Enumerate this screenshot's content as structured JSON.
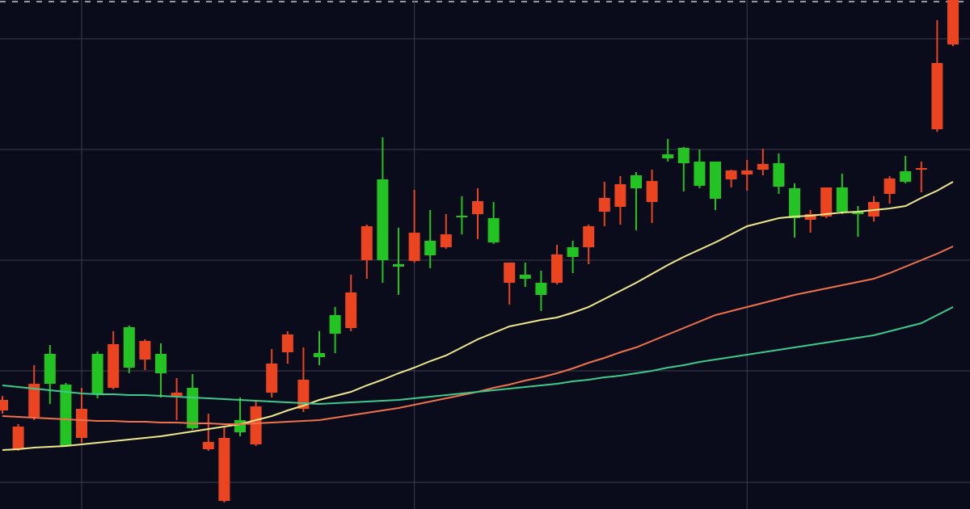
{
  "chart_data": {
    "type": "candlestick",
    "open": [
      135,
      102,
      155,
      155,
      78,
      124,
      142,
      204,
      175,
      208,
      168,
      144,
      100,
      83,
      88,
      95,
      127,
      180,
      216,
      160,
      188,
      217,
      268,
      350,
      308,
      300,
      342,
      314,
      340,
      361,
      381,
      330,
      305,
      285,
      265,
      315,
      312,
      350,
      385,
      402,
      397,
      406,
      434,
      428,
      400,
      384,
      419,
      419,
      427,
      399,
      360,
      365,
      398,
      368,
      365,
      380,
      409,
      405,
      422,
      552,
      630
    ],
    "high": [
      140,
      105,
      178,
      203,
      156,
      150,
      195,
      220,
      227,
      210,
      205,
      162,
      167,
      118,
      102,
      138,
      133,
      198,
      220,
      200,
      220,
      250,
      290,
      352,
      460,
      348,
      395,
      370,
      365,
      387,
      397,
      380,
      305,
      305,
      295,
      327,
      332,
      352,
      405,
      412,
      417,
      420,
      458,
      448,
      445,
      430,
      420,
      432,
      446,
      440,
      403,
      370,
      398,
      415,
      375,
      387,
      412,
      437,
      430,
      605,
      630
    ],
    "low": [
      118,
      72,
      110,
      130,
      77,
      82,
      137,
      148,
      168,
      172,
      138,
      110,
      98,
      72,
      8,
      90,
      78,
      138,
      180,
      120,
      178,
      193,
      220,
      285,
      280,
      265,
      305,
      298,
      322,
      340,
      334,
      328,
      253,
      275,
      245,
      278,
      292,
      303,
      350,
      352,
      345,
      354,
      430,
      393,
      397,
      370,
      398,
      394,
      413,
      390,
      336,
      342,
      360,
      365,
      337,
      356,
      378,
      403,
      392,
      467,
      573
    ],
    "close": [
      122,
      74,
      114,
      192,
      154,
      88,
      192,
      150,
      225,
      185,
      192,
      140,
      150,
      74,
      10,
      110,
      80,
      144,
      194,
      124,
      193,
      240,
      224,
      308,
      408,
      303,
      307,
      332,
      324,
      363,
      365,
      360,
      280,
      290,
      280,
      280,
      324,
      324,
      368,
      374,
      413,
      380,
      439,
      447,
      430,
      430,
      408,
      414,
      420,
      428,
      397,
      358,
      362,
      398,
      368,
      362,
      390,
      418,
      420,
      470,
      575
    ],
    "up_color": "#22c322",
    "down_color": "#ea4420",
    "moving_averages": [
      {
        "color": "#eee88a",
        "values": [
          73,
          74,
          76,
          77,
          78,
          80,
          82,
          84,
          86,
          88,
          90,
          93,
          96,
          99,
          102,
          105,
          110,
          115,
          122,
          128,
          135,
          140,
          145,
          153,
          160,
          168,
          175,
          183,
          190,
          200,
          210,
          218,
          226,
          230,
          234,
          237,
          243,
          250,
          260,
          270,
          280,
          291,
          302,
          312,
          321,
          330,
          340,
          350,
          355,
          360,
          362,
          363,
          365,
          367,
          368,
          370,
          372,
          375,
          385,
          394,
          405
        ]
      },
      {
        "color": "#f0724c",
        "values": [
          115,
          114,
          113,
          112,
          111,
          110,
          109,
          109,
          108,
          108,
          107,
          107,
          106,
          106,
          105,
          105,
          106,
          107,
          108,
          109,
          110,
          113,
          116,
          119,
          122,
          125,
          129,
          133,
          137,
          141,
          145,
          150,
          154,
          159,
          163,
          168,
          174,
          181,
          187,
          194,
          200,
          208,
          216,
          224,
          232,
          240,
          245,
          250,
          255,
          260,
          265,
          269,
          273,
          277,
          281,
          285,
          292,
          300,
          308,
          316,
          325
        ]
      },
      {
        "color": "#3ccb8c",
        "values": [
          153,
          151,
          149,
          147,
          145,
          143,
          142,
          142,
          141,
          141,
          140,
          139,
          138,
          137,
          136,
          135,
          134,
          133,
          132,
          131,
          130,
          131,
          132,
          133,
          134,
          135,
          137,
          139,
          141,
          143,
          145,
          147,
          149,
          151,
          153,
          155,
          158,
          160,
          163,
          165,
          168,
          171,
          175,
          178,
          182,
          185,
          188,
          191,
          194,
          197,
          200,
          203,
          206,
          209,
          212,
          215,
          220,
          225,
          230,
          240,
          250
        ]
      }
    ],
    "ylim": [
      0,
      630
    ],
    "yticks": [
      33,
      171,
      308,
      445,
      582
    ],
    "xticks": [
      5,
      26,
      47
    ],
    "grid": true
  }
}
